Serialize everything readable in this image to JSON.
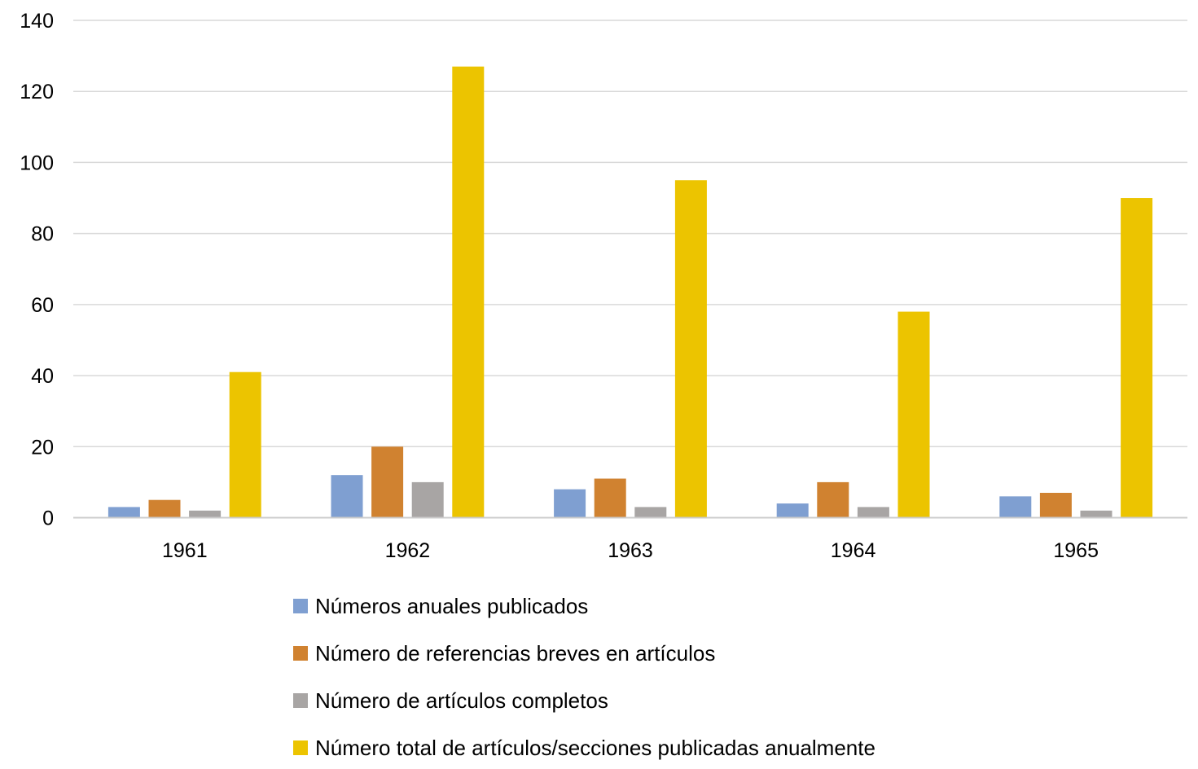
{
  "chart_data": {
    "type": "bar",
    "categories": [
      "1961",
      "1962",
      "1963",
      "1964",
      "1965"
    ],
    "series": [
      {
        "name": "Números anuales publicados",
        "color": "#7f9fd1",
        "values": [
          3,
          12,
          8,
          4,
          6
        ]
      },
      {
        "name": "Número de referencias breves en artículos",
        "color": "#d08230",
        "values": [
          5,
          20,
          11,
          10,
          7
        ]
      },
      {
        "name": "Número de artículos completos",
        "color": "#a8a5a4",
        "values": [
          2,
          10,
          3,
          3,
          2
        ]
      },
      {
        "name": "Número total de artículos/secciones publicadas anualmente",
        "color": "#ecc400",
        "values": [
          41,
          127,
          95,
          58,
          90
        ]
      }
    ],
    "ylim": [
      0,
      140
    ],
    "yticks": [
      "0",
      "20",
      "40",
      "60",
      "80",
      "100",
      "120",
      "140"
    ],
    "grid": true,
    "legend_position": "bottom"
  }
}
